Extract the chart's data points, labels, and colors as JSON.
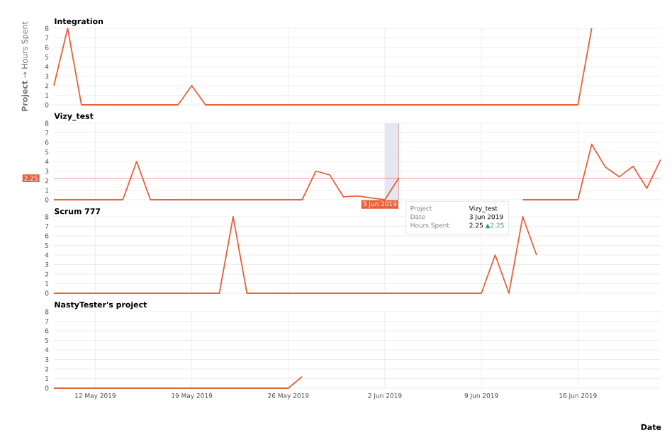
{
  "chart_data": [
    {
      "type": "line",
      "title": "Integration",
      "ylabel": "**Project** → Hours Spent",
      "color": "#e8603c",
      "grid": true,
      "tick_labels": "y",
      "x": [
        "2019-05-09",
        "2019-05-10",
        "2019-05-11",
        "2019-05-18",
        "2019-05-19",
        "2019-05-20",
        "2019-06-16",
        "2019-06-17"
      ],
      "values": [
        2,
        8,
        0,
        0,
        2,
        0,
        0,
        8
      ],
      "xlim": [
        "2019-05-09",
        "2019-06-22"
      ],
      "ylim": [
        0,
        8
      ],
      "yticks": [
        0,
        1,
        2,
        3,
        4,
        5,
        6,
        7,
        8
      ],
      "xticks": [
        {
          "value": "2019-05-12",
          "label": null
        },
        {
          "value": "2019-05-19",
          "label": null
        },
        {
          "value": "2019-05-26",
          "label": null
        },
        {
          "value": "2019-06-02",
          "label": null
        },
        {
          "value": "2019-06-09",
          "label": null
        },
        {
          "value": "2019-06-16",
          "label": null
        }
      ]
    },
    {
      "type": "line",
      "title": "Vizy_test",
      "color": "#e8603c",
      "grid": true,
      "tick_labels": "y",
      "x": [
        "2019-05-09",
        "2019-05-14",
        "2019-05-15",
        "2019-05-16",
        "2019-05-27",
        "2019-05-28",
        "2019-05-29",
        "2019-05-30",
        "2019-05-31",
        "2019-06-01",
        "2019-06-02",
        "2019-06-03",
        "2019-06-04",
        "2019-06-12",
        "2019-06-16",
        "2019-06-17",
        "2019-06-18",
        "2019-06-19",
        "2019-06-20",
        "2019-06-21",
        "2019-06-22"
      ],
      "values": [
        0,
        0,
        4,
        0,
        0,
        3,
        2.6,
        0.3,
        0.4,
        0.2,
        0,
        2.25,
        null,
        0,
        0,
        5.8,
        3.4,
        2.4,
        3.5,
        1.2,
        4.2
      ],
      "xlim": [
        "2019-05-09",
        "2019-06-22"
      ],
      "ylim": [
        0,
        8
      ],
      "yticks": [
        0,
        1,
        2,
        3,
        4,
        5,
        6,
        7,
        8
      ],
      "xticks": [
        {
          "value": "2019-05-12",
          "label": null
        },
        {
          "value": "2019-05-19",
          "label": null
        },
        {
          "value": "2019-05-26",
          "label": null
        },
        {
          "value": "2019-06-02",
          "label": null
        },
        {
          "value": "2019-06-09",
          "label": null
        },
        {
          "value": "2019-06-16",
          "label": null
        }
      ],
      "bands": [
        {
          "axis": "x",
          "from": "2019-06-02",
          "to": "2019-06-03",
          "color": "#e4e6f2"
        }
      ],
      "ref_lines": [
        {
          "axis": "y",
          "value": 2.25,
          "label": "2.25",
          "color": "#e8603c"
        },
        {
          "axis": "x",
          "value": "2019-06-03",
          "label": "3 Jun 2019",
          "color": "#e8603c"
        }
      ],
      "annotations": [
        "Project",
        "Vizy_test",
        "Date",
        "3 Jun 2019",
        "Hours Spent",
        "2.25",
        "▲2.25"
      ]
    },
    {
      "type": "line",
      "title": "Scrum 777",
      "color": "#e8603c",
      "grid": true,
      "tick_labels": "y",
      "x": [
        "2019-05-09",
        "2019-05-21",
        "2019-05-22",
        "2019-05-23",
        "2019-06-09",
        "2019-06-10",
        "2019-06-11",
        "2019-06-12",
        "2019-06-13"
      ],
      "values": [
        0,
        0,
        8,
        0,
        0,
        4,
        0,
        8,
        4
      ],
      "xlim": [
        "2019-05-09",
        "2019-06-22"
      ],
      "ylim": [
        0,
        8
      ],
      "yticks": [
        0,
        1,
        2,
        3,
        4,
        5,
        6,
        7,
        8
      ],
      "xticks": [
        {
          "value": "2019-05-12",
          "label": null
        },
        {
          "value": "2019-05-19",
          "label": null
        },
        {
          "value": "2019-05-26",
          "label": null
        },
        {
          "value": "2019-06-02",
          "label": null
        },
        {
          "value": "2019-06-09",
          "label": null
        },
        {
          "value": "2019-06-16",
          "label": null
        }
      ]
    },
    {
      "type": "line",
      "title": "NastyTester's project",
      "xlabel": "Date",
      "color": "#e8603c",
      "grid": true,
      "x": [
        "2019-05-09",
        "2019-05-26",
        "2019-05-27"
      ],
      "values": [
        0,
        0,
        1.2
      ],
      "xlim": [
        "2019-05-09",
        "2019-06-22"
      ],
      "ylim": [
        0,
        8
      ],
      "yticks": [
        0,
        1,
        2,
        3,
        4,
        5,
        6,
        7,
        8
      ],
      "xticks": [
        {
          "value": "2019-05-12",
          "label": "12 May 2019"
        },
        {
          "value": "2019-05-19",
          "label": "19 May 2019"
        },
        {
          "value": "2019-05-26",
          "label": "26 May 2019"
        },
        {
          "value": "2019-06-02",
          "label": "2 Jun 2019"
        },
        {
          "value": "2019-06-09",
          "label": "9 Jun 2019"
        },
        {
          "value": "2019-06-16",
          "label": "16 Jun 2019"
        }
      ]
    }
  ]
}
